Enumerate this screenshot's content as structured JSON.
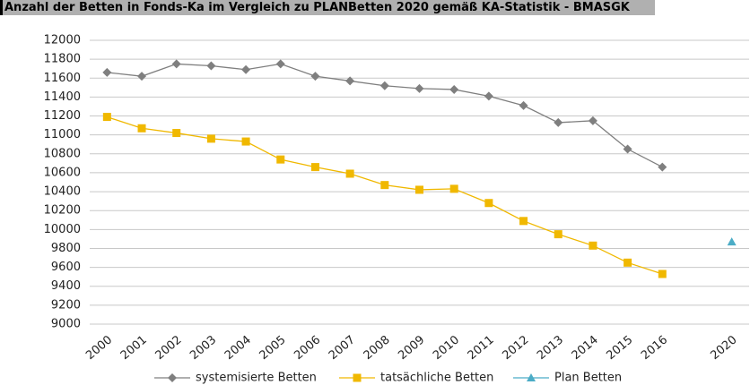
{
  "chart_data": {
    "type": "line",
    "title": "Anzahl der Betten in Fonds-Ka im Vergleich zu PLANBetten 2020 gemäß KA-Statistik - BMASGK",
    "categories": [
      "2000",
      "2001",
      "2002",
      "2003",
      "2004",
      "2005",
      "2006",
      "2007",
      "2008",
      "2009",
      "2010",
      "2011",
      "2012",
      "2013",
      "2014",
      "2015",
      "2016",
      null,
      "2020"
    ],
    "series": [
      {
        "name": "systemisierte Betten",
        "color": "#7f7f7f",
        "marker": "diamond",
        "values": [
          11660,
          11620,
          11750,
          11730,
          11690,
          11750,
          11620,
          11570,
          11520,
          11490,
          11480,
          11410,
          11310,
          11130,
          11150,
          10850,
          10660,
          null,
          null
        ]
      },
      {
        "name": "tatsächliche Betten",
        "color": "#f0b800",
        "marker": "square",
        "values": [
          11190,
          11070,
          11020,
          10960,
          10930,
          10740,
          10660,
          10590,
          10470,
          10420,
          10430,
          10280,
          10090,
          9950,
          9830,
          9650,
          9530,
          null,
          null
        ]
      },
      {
        "name": "Plan Betten",
        "color": "#4bacc6",
        "marker": "triangle",
        "values": [
          null,
          null,
          null,
          null,
          null,
          null,
          null,
          null,
          null,
          null,
          null,
          null,
          null,
          null,
          null,
          null,
          null,
          null,
          9870
        ]
      }
    ],
    "ylim": [
      9000,
      12000
    ],
    "yticks": [
      9000,
      9200,
      9400,
      9600,
      9800,
      10000,
      10200,
      10400,
      10600,
      10800,
      11000,
      11200,
      11400,
      11600,
      11800,
      12000
    ],
    "grid": true,
    "legend": "bottom"
  }
}
